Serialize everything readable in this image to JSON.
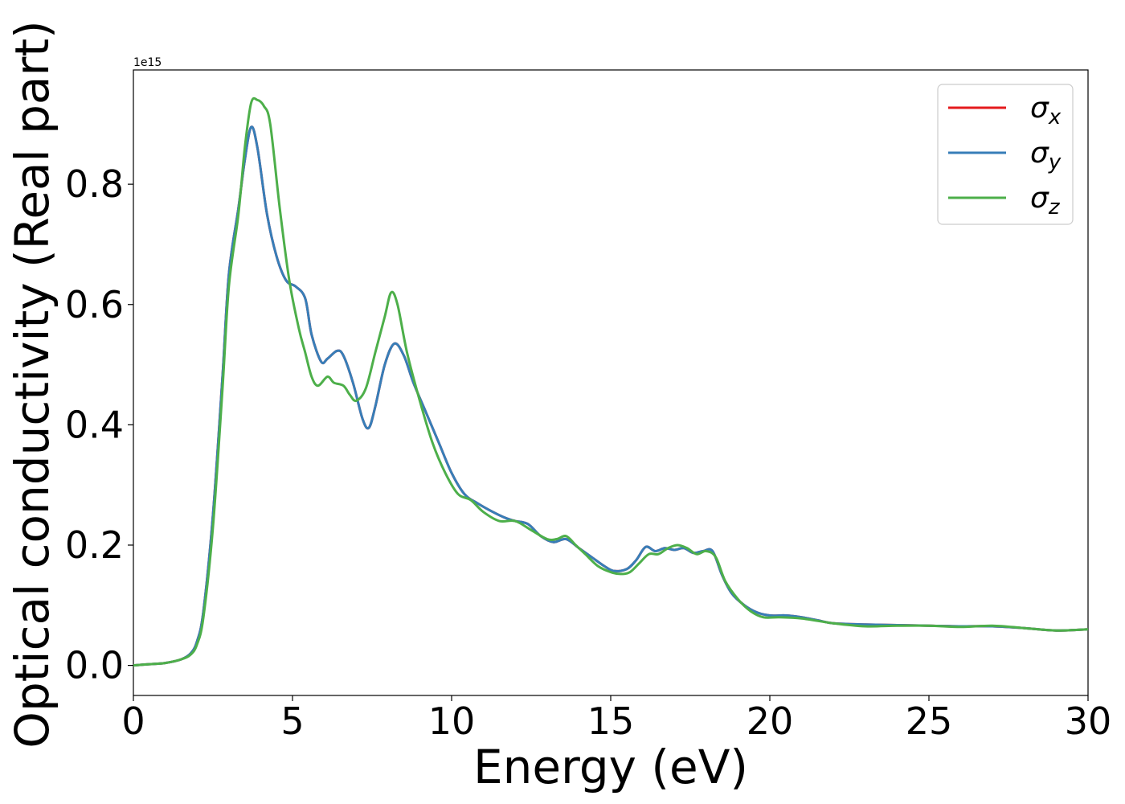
{
  "chart_data": {
    "type": "line",
    "xlabel": "Energy (eV)",
    "ylabel": "Optical conductivity (Real part)",
    "y_offset_label": "1e15",
    "xlim": [
      0,
      30
    ],
    "ylim": [
      -0.05,
      0.99
    ],
    "xticks": [
      0,
      5,
      10,
      15,
      20,
      25,
      30
    ],
    "xtick_labels": [
      "0",
      "5",
      "10",
      "15",
      "20",
      "25",
      "30"
    ],
    "yticks": [
      0.0,
      0.2,
      0.4,
      0.6,
      0.8
    ],
    "ytick_labels": [
      "0.0",
      "0.2",
      "0.4",
      "0.6",
      "0.8"
    ],
    "legend_position": "top-right",
    "grid": false,
    "series": [
      {
        "name": "σx",
        "name_base": "σ",
        "name_sub": "x",
        "color": "#e41a1c",
        "x": [
          0,
          0.5,
          1.0,
          1.5,
          1.8,
          2.0,
          2.2,
          2.5,
          2.8,
          3.0,
          3.3,
          3.5,
          3.7,
          3.9,
          4.2,
          4.5,
          4.8,
          5.1,
          5.4,
          5.6,
          5.9,
          6.1,
          6.4,
          6.6,
          6.9,
          7.2,
          7.4,
          7.6,
          7.9,
          8.2,
          8.5,
          8.8,
          9.2,
          9.6,
          10.0,
          10.4,
          10.8,
          11.3,
          11.7,
          12.0,
          12.4,
          12.8,
          13.2,
          13.6,
          14.0,
          14.4,
          14.8,
          15.1,
          15.5,
          15.8,
          16.1,
          16.4,
          16.7,
          17.0,
          17.3,
          17.6,
          17.9,
          18.2,
          18.5,
          18.8,
          19.2,
          19.6,
          20.0,
          20.5,
          21.0,
          21.5,
          22.0,
          23.0,
          24.0,
          25.0,
          26.0,
          27.0,
          28.0,
          29.0,
          30.0
        ],
        "y": [
          0.0,
          0.002,
          0.004,
          0.01,
          0.02,
          0.04,
          0.09,
          0.25,
          0.48,
          0.65,
          0.76,
          0.84,
          0.895,
          0.86,
          0.75,
          0.68,
          0.64,
          0.63,
          0.61,
          0.55,
          0.505,
          0.51,
          0.523,
          0.515,
          0.47,
          0.41,
          0.395,
          0.43,
          0.5,
          0.535,
          0.515,
          0.47,
          0.42,
          0.37,
          0.32,
          0.285,
          0.27,
          0.255,
          0.245,
          0.24,
          0.235,
          0.215,
          0.205,
          0.21,
          0.195,
          0.18,
          0.165,
          0.157,
          0.16,
          0.175,
          0.197,
          0.19,
          0.195,
          0.192,
          0.195,
          0.187,
          0.19,
          0.19,
          0.15,
          0.12,
          0.1,
          0.088,
          0.083,
          0.083,
          0.08,
          0.075,
          0.07,
          0.068,
          0.067,
          0.066,
          0.065,
          0.065,
          0.062,
          0.058,
          0.06
        ]
      },
      {
        "name": "σy",
        "name_base": "σ",
        "name_sub": "y",
        "color": "#377eb8",
        "x": [
          0,
          0.5,
          1.0,
          1.5,
          1.8,
          2.0,
          2.2,
          2.5,
          2.8,
          3.0,
          3.3,
          3.5,
          3.7,
          3.9,
          4.2,
          4.5,
          4.8,
          5.1,
          5.4,
          5.6,
          5.9,
          6.1,
          6.4,
          6.6,
          6.9,
          7.2,
          7.4,
          7.6,
          7.9,
          8.2,
          8.5,
          8.8,
          9.2,
          9.6,
          10.0,
          10.4,
          10.8,
          11.3,
          11.7,
          12.0,
          12.4,
          12.8,
          13.2,
          13.6,
          14.0,
          14.4,
          14.8,
          15.1,
          15.5,
          15.8,
          16.1,
          16.4,
          16.7,
          17.0,
          17.3,
          17.6,
          17.9,
          18.2,
          18.5,
          18.8,
          19.2,
          19.6,
          20.0,
          20.5,
          21.0,
          21.5,
          22.0,
          23.0,
          24.0,
          25.0,
          26.0,
          27.0,
          28.0,
          29.0,
          30.0
        ],
        "y": [
          0.0,
          0.002,
          0.004,
          0.01,
          0.02,
          0.04,
          0.09,
          0.25,
          0.48,
          0.65,
          0.76,
          0.84,
          0.895,
          0.86,
          0.75,
          0.68,
          0.64,
          0.63,
          0.61,
          0.55,
          0.505,
          0.51,
          0.523,
          0.515,
          0.47,
          0.41,
          0.395,
          0.43,
          0.5,
          0.535,
          0.515,
          0.47,
          0.42,
          0.37,
          0.32,
          0.285,
          0.27,
          0.255,
          0.245,
          0.24,
          0.235,
          0.215,
          0.205,
          0.21,
          0.195,
          0.18,
          0.165,
          0.157,
          0.16,
          0.175,
          0.197,
          0.19,
          0.195,
          0.192,
          0.195,
          0.187,
          0.19,
          0.19,
          0.15,
          0.12,
          0.1,
          0.088,
          0.083,
          0.083,
          0.08,
          0.075,
          0.07,
          0.068,
          0.067,
          0.066,
          0.065,
          0.065,
          0.062,
          0.058,
          0.06
        ]
      },
      {
        "name": "σz",
        "name_base": "σ",
        "name_sub": "z",
        "color": "#4daf4a",
        "x": [
          0,
          0.5,
          1.0,
          1.5,
          1.8,
          2.0,
          2.2,
          2.5,
          2.8,
          3.0,
          3.3,
          3.5,
          3.7,
          3.9,
          4.1,
          4.3,
          4.6,
          4.9,
          5.2,
          5.4,
          5.6,
          5.8,
          6.1,
          6.3,
          6.6,
          6.8,
          7.0,
          7.3,
          7.6,
          7.9,
          8.1,
          8.3,
          8.6,
          9.0,
          9.4,
          9.8,
          10.2,
          10.6,
          11.0,
          11.5,
          12.0,
          12.5,
          13.0,
          13.3,
          13.6,
          13.9,
          14.2,
          14.6,
          15.0,
          15.3,
          15.6,
          15.9,
          16.2,
          16.5,
          16.8,
          17.1,
          17.4,
          17.7,
          18.0,
          18.3,
          18.6,
          19.0,
          19.4,
          19.8,
          20.3,
          21.0,
          22.0,
          23.0,
          24.0,
          25.0,
          26.0,
          27.0,
          28.0,
          29.0,
          30.0
        ],
        "y": [
          0.0,
          0.002,
          0.004,
          0.01,
          0.018,
          0.035,
          0.08,
          0.23,
          0.46,
          0.63,
          0.75,
          0.86,
          0.935,
          0.94,
          0.93,
          0.9,
          0.76,
          0.64,
          0.56,
          0.52,
          0.48,
          0.465,
          0.48,
          0.47,
          0.465,
          0.45,
          0.44,
          0.46,
          0.52,
          0.58,
          0.62,
          0.6,
          0.52,
          0.44,
          0.37,
          0.32,
          0.285,
          0.275,
          0.255,
          0.24,
          0.24,
          0.225,
          0.21,
          0.21,
          0.215,
          0.2,
          0.185,
          0.165,
          0.155,
          0.152,
          0.155,
          0.17,
          0.185,
          0.185,
          0.195,
          0.2,
          0.195,
          0.185,
          0.19,
          0.18,
          0.14,
          0.11,
          0.09,
          0.08,
          0.08,
          0.078,
          0.07,
          0.065,
          0.066,
          0.066,
          0.064,
          0.066,
          0.062,
          0.058,
          0.06
        ]
      }
    ]
  }
}
